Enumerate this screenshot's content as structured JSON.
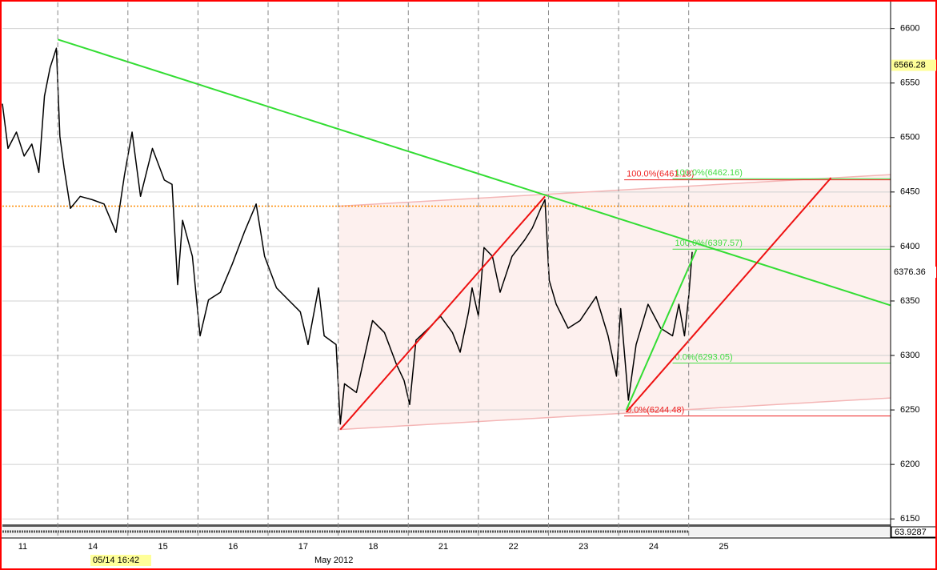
{
  "chart_data": {
    "type": "line",
    "categories": [
      "11",
      "14",
      "15",
      "16",
      "17",
      "18",
      "21",
      "22",
      "23",
      "24",
      "25"
    ],
    "x_label": "May 2012",
    "cursor_label": "05/14 16:42",
    "xlim": [
      0.21,
      12.88
    ],
    "ylim": [
      6145,
      6624
    ],
    "yticks": [
      6150,
      6200,
      6250,
      6300,
      6350,
      6400,
      6450,
      6500,
      6550,
      6600
    ],
    "grid": true,
    "series": [
      {
        "color": "#000000",
        "x": [
          0.21,
          0.29,
          0.41,
          0.52,
          0.63,
          0.73,
          0.81,
          0.89,
          0.98,
          1.03,
          1.09,
          1.18,
          1.32,
          1.49,
          1.66,
          1.83,
          1.95,
          2.06,
          2.18,
          2.35,
          2.52,
          2.63,
          2.71,
          2.78,
          2.92,
          3.03,
          3.15,
          3.32,
          3.49,
          3.66,
          3.83,
          3.95,
          4.12,
          4.29,
          4.46,
          4.57,
          4.72,
          4.8,
          4.97,
          5.03,
          5.09,
          5.26,
          5.49,
          5.66,
          5.83,
          5.94,
          6.02,
          6.11,
          6.29,
          6.46,
          6.63,
          6.74,
          6.86,
          6.91,
          7.0,
          7.08,
          7.2,
          7.31,
          7.48,
          7.66,
          7.77,
          7.89,
          7.95,
          8.01,
          8.11,
          8.28,
          8.45,
          8.68,
          8.85,
          8.97,
          9.03,
          9.14,
          9.25,
          9.42,
          9.6,
          9.77,
          9.86,
          9.94,
          10.0,
          10.05
        ],
        "values": [
          6531,
          6490,
          6505,
          6483,
          6494,
          6468,
          6538,
          6564,
          6582,
          6501,
          6472,
          6435,
          6446,
          6443,
          6439,
          6413,
          6465,
          6505,
          6446,
          6490,
          6461,
          6457,
          6365,
          6424,
          6391,
          6318,
          6351,
          6358,
          6384,
          6413,
          6439,
          6391,
          6362,
          6351,
          6340,
          6310,
          6362,
          6318,
          6310,
          6237,
          6274,
          6266,
          6332,
          6321,
          6292,
          6277,
          6255,
          6314,
          6325,
          6336,
          6321,
          6303,
          6340,
          6362,
          6336,
          6399,
          6391,
          6358,
          6391,
          6406,
          6417,
          6435,
          6443,
          6369,
          6347,
          6325,
          6332,
          6354,
          6318,
          6281,
          6343,
          6259,
          6310,
          6347,
          6325,
          6318,
          6347,
          6318,
          6354,
          6395
        ]
      }
    ],
    "channel": {
      "color": "#f4b6b6",
      "fill": "#fdf0ee",
      "x": [
        5.01,
        12.88
      ],
      "upper": [
        6437,
        6466
      ],
      "lower": [
        6232,
        6261
      ]
    },
    "levels": [
      {
        "value": 6437,
        "color": "#ff8c00"
      }
    ],
    "trendlines": [
      {
        "color": "#33dd33",
        "x": [
          1.0,
          12.88
        ],
        "values": [
          6590,
          6346
        ]
      },
      {
        "color": "#ee1111",
        "x": [
          5.03,
          7.95
        ],
        "values": [
          6232,
          6446
        ]
      },
      {
        "color": "#ee1111",
        "x": [
          9.11,
          12.03
        ],
        "values": [
          6248,
          6463
        ]
      },
      {
        "color": "#33dd33",
        "x": [
          9.11,
          10.11
        ],
        "values": [
          6250,
          6397
        ]
      }
    ],
    "fib_levels": [
      {
        "value": 6461.18,
        "label": "100.0%(6461.18)",
        "color": "#ee2222",
        "x0": 9.08
      },
      {
        "value": 6462.16,
        "label": "100.0%(6462.16)",
        "color": "#44dd44",
        "x0": 9.77
      },
      {
        "value": 6397.57,
        "label": "100.0%(6397.57)",
        "color": "#44dd44",
        "x0": 9.77
      },
      {
        "value": 6293.05,
        "label": "0.0%(6293.05)",
        "color": "#44dd44",
        "x0": 9.77
      },
      {
        "value": 6244.48,
        "label": "0.0%(6244.48)",
        "color": "#ee2222",
        "x0": 9.08
      }
    ],
    "markers": [
      {
        "value": 6566.28,
        "background": "#ffff99"
      },
      {
        "value": 6376.36,
        "background": "#ffffff"
      }
    ],
    "lower_panel_value": 63.9287
  }
}
